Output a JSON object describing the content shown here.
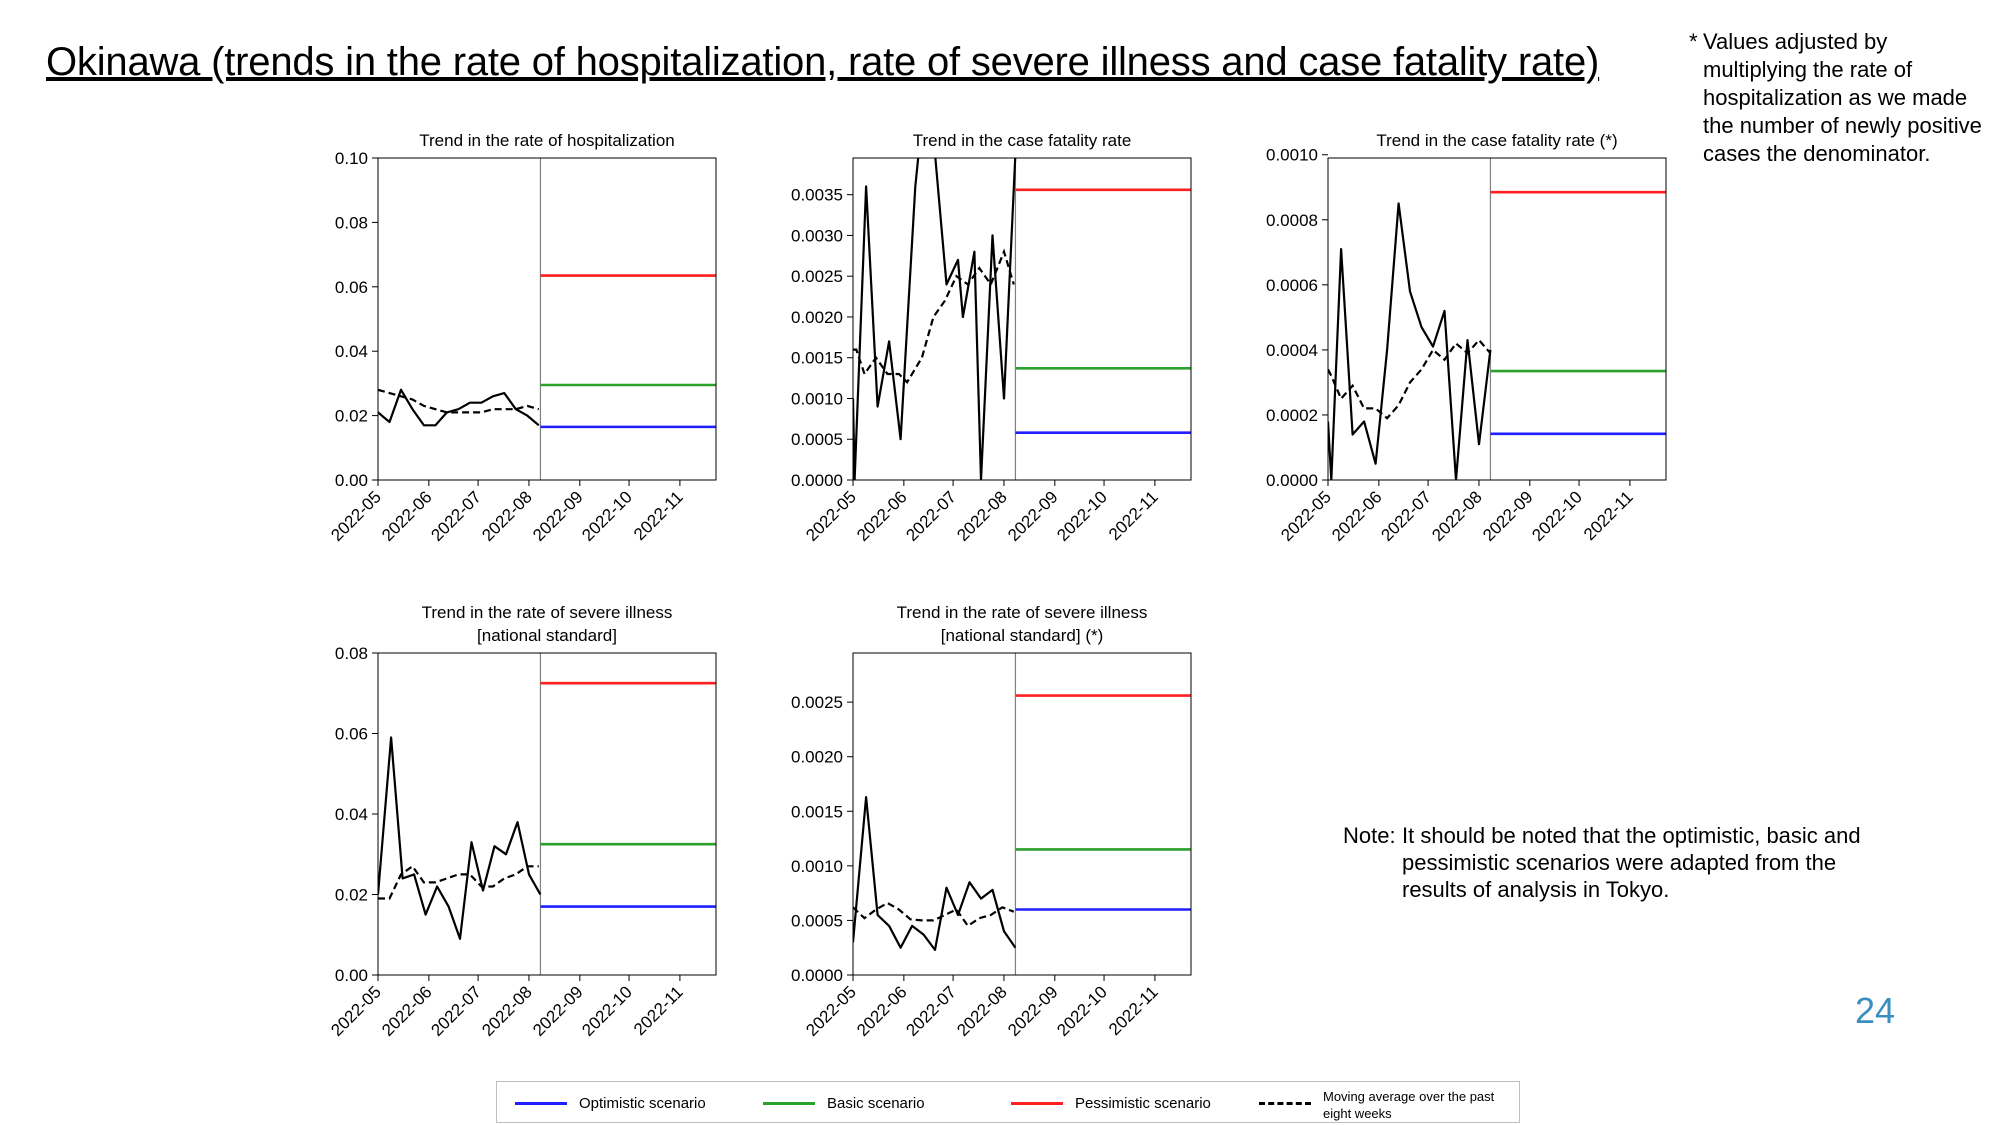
{
  "title": "Okinawa (trends in the rate of hospitalization, rate of severe illness and case fatality rate)",
  "footnote": {
    "mark": "*",
    "text": "Values adjusted by multiplying the rate of hospitalization as we made the number of newly positive cases the denominator."
  },
  "note": {
    "label": "Note:",
    "text": "It should be noted that the optimistic, basic and pessimistic scenarios were adapted from the results of analysis in Tokyo."
  },
  "page_number": "24",
  "colors": {
    "optimistic": "#1f1fff",
    "basic": "#2ca02c",
    "pessimistic": "#ff2020",
    "observed": "#000000",
    "divider": "#808080"
  },
  "legend": [
    {
      "key": "optimistic",
      "label": "Optimistic scenario",
      "style": "solid"
    },
    {
      "key": "basic",
      "label": "Basic scenario",
      "style": "solid"
    },
    {
      "key": "pessimistic",
      "label": "Pessimistic scenario",
      "style": "solid"
    },
    {
      "key": "observed",
      "label": "Moving average over the past eight weeks",
      "style": "dashed"
    }
  ],
  "chart_data": [
    {
      "type": "line",
      "title": [
        "Trend in the rate of hospitalization"
      ],
      "xlabel": "",
      "ylabel": "",
      "x_ticks": [
        "2022-05",
        "2022-06",
        "2022-07",
        "2022-08",
        "2022-09",
        "2022-10",
        "2022-11"
      ],
      "xlim": [
        "2022-05-01",
        "2022-11-23"
      ],
      "ylim": [
        0,
        0.1
      ],
      "y_ticks": [
        "0.00",
        "0.02",
        "0.04",
        "0.06",
        "0.08",
        "0.10"
      ],
      "forecast_start": "2022-08-08",
      "weekly_dates": [
        "2022-05-01",
        "2022-05-08",
        "2022-05-15",
        "2022-05-22",
        "2022-05-29",
        "2022-06-05",
        "2022-06-12",
        "2022-06-19",
        "2022-06-26",
        "2022-07-03",
        "2022-07-10",
        "2022-07-17",
        "2022-07-24",
        "2022-07-31",
        "2022-08-07"
      ],
      "weekly_rate": [
        0.021,
        0.018,
        0.028,
        0.022,
        0.017,
        0.017,
        0.021,
        0.022,
        0.024,
        0.024,
        0.026,
        0.027,
        0.022,
        0.02,
        0.017
      ],
      "moving_average": [
        0.028,
        0.027,
        0.026,
        0.025,
        0.023,
        0.022,
        0.021,
        0.021,
        0.021,
        0.021,
        0.022,
        0.022,
        0.022,
        0.023,
        0.022
      ],
      "scenarios": {
        "optimistic": 0.0165,
        "basic": 0.0295,
        "pessimistic": 0.0635
      }
    },
    {
      "type": "line",
      "title": [
        "Trend in the case fatality rate"
      ],
      "xlabel": "",
      "ylabel": "",
      "x_ticks": [
        "2022-05",
        "2022-06",
        "2022-07",
        "2022-08",
        "2022-09",
        "2022-10",
        "2022-11"
      ],
      "xlim": [
        "2022-05-01",
        "2022-11-23"
      ],
      "ylim": [
        0,
        0.00395
      ],
      "y_ticks": [
        "0.0000",
        "0.0005",
        "0.0010",
        "0.0015",
        "0.0020",
        "0.0025",
        "0.0030",
        "0.0035"
      ],
      "forecast_start": "2022-08-08",
      "weekly_dates": [
        "2022-05-01",
        "2022-05-08",
        "2022-05-15",
        "2022-05-22",
        "2022-05-29",
        "2022-06-05",
        "2022-06-12",
        "2022-06-19",
        "2022-06-26",
        "2022-07-03",
        "2022-07-10",
        "2022-07-17",
        "2022-07-24",
        "2022-07-31",
        "2022-08-07"
      ],
      "weekly_rate": [
        0.001,
        0.0,
        0.0036,
        0.0009,
        0.0017,
        0.0005,
        0.0036,
        0.004,
        0.004,
        0.0024,
        0.0027,
        0.002,
        0.0028,
        0.0,
        0.003,
        0.001,
        0.004
      ],
      "weekly_rate_dates": [
        "2022-05-01",
        "2022-05-02",
        "2022-05-09",
        "2022-05-16",
        "2022-05-23",
        "2022-05-30",
        "2022-06-08",
        "2022-06-10",
        "2022-06-20",
        "2022-06-27",
        "2022-07-04",
        "2022-07-07",
        "2022-07-14",
        "2022-07-18",
        "2022-07-25",
        "2022-08-01",
        "2022-08-08"
      ],
      "moving_average": [
        0.0016,
        0.0016,
        0.0013,
        0.0015,
        0.0013,
        0.0013,
        0.0012,
        0.0015,
        0.002,
        0.0022,
        0.0025,
        0.0024,
        0.0026,
        0.0024,
        0.0028,
        0.0024
      ],
      "moving_average_dates": [
        "2022-05-01",
        "2022-05-03",
        "2022-05-08",
        "2022-05-15",
        "2022-05-22",
        "2022-05-29",
        "2022-06-03",
        "2022-06-12",
        "2022-06-19",
        "2022-06-26",
        "2022-07-03",
        "2022-07-10",
        "2022-07-17",
        "2022-07-24",
        "2022-08-01",
        "2022-08-07"
      ],
      "scenarios": {
        "optimistic": 0.00058,
        "basic": 0.00137,
        "pessimistic": 0.00356
      }
    },
    {
      "type": "line",
      "title": [
        "Trend in the case fatality rate (*)"
      ],
      "xlabel": "",
      "ylabel": "",
      "x_ticks": [
        "2022-05",
        "2022-06",
        "2022-07",
        "2022-08",
        "2022-09",
        "2022-10",
        "2022-11"
      ],
      "xlim": [
        "2022-05-01",
        "2022-11-23"
      ],
      "ylim": [
        0,
        0.00099
      ],
      "y_ticks": [
        "0.0000",
        "0.0002",
        "0.0004",
        "0.0006",
        "0.0008",
        "0.0010"
      ],
      "forecast_start": "2022-08-08",
      "weekly_dates": [
        "2022-05-01",
        "2022-05-03",
        "2022-05-09",
        "2022-05-16",
        "2022-05-23",
        "2022-05-30",
        "2022-06-06",
        "2022-06-13",
        "2022-06-20",
        "2022-06-27",
        "2022-07-04",
        "2022-07-11",
        "2022-07-18",
        "2022-07-25",
        "2022-08-01",
        "2022-08-08"
      ],
      "weekly_rate": [
        0.00018,
        0.0,
        0.00071,
        0.00014,
        0.00018,
        5e-05,
        0.0004,
        0.00085,
        0.00058,
        0.00047,
        0.00041,
        0.00052,
        0.0,
        0.00043,
        0.00011,
        0.0004
      ],
      "moving_average": [
        0.00034,
        0.00032,
        0.00025,
        0.00029,
        0.00022,
        0.00022,
        0.00019,
        0.00023,
        0.0003,
        0.00034,
        0.0004,
        0.00037,
        0.00042,
        0.00039,
        0.00043,
        0.00039
      ],
      "scenarios": {
        "optimistic": 0.000142,
        "basic": 0.000335,
        "pessimistic": 0.000885
      }
    },
    {
      "type": "line",
      "title": [
        "Trend in the rate of severe illness",
        "[national standard]"
      ],
      "xlabel": "",
      "ylabel": "",
      "x_ticks": [
        "2022-05",
        "2022-06",
        "2022-07",
        "2022-08",
        "2022-09",
        "2022-10",
        "2022-11"
      ],
      "xlim": [
        "2022-05-01",
        "2022-11-23"
      ],
      "ylim": [
        0,
        0.08
      ],
      "y_ticks": [
        "0.00",
        "0.02",
        "0.04",
        "0.06",
        "0.08"
      ],
      "forecast_start": "2022-08-08",
      "weekly_dates": [
        "2022-05-01",
        "2022-05-09",
        "2022-05-16",
        "2022-05-23",
        "2022-05-30",
        "2022-06-06",
        "2022-06-13",
        "2022-06-20",
        "2022-06-27",
        "2022-07-04",
        "2022-07-11",
        "2022-07-18",
        "2022-07-25",
        "2022-08-01",
        "2022-08-08"
      ],
      "weekly_rate": [
        0.02,
        0.059,
        0.024,
        0.025,
        0.015,
        0.022,
        0.017,
        0.009,
        0.033,
        0.021,
        0.032,
        0.03,
        0.038,
        0.025,
        0.02
      ],
      "moving_average": [
        0.019,
        0.019,
        0.025,
        0.027,
        0.023,
        0.023,
        0.024,
        0.025,
        0.025,
        0.022,
        0.022,
        0.024,
        0.025,
        0.027,
        0.027
      ],
      "moving_average_dates": [
        "2022-05-01",
        "2022-05-08",
        "2022-05-15",
        "2022-05-22",
        "2022-05-29",
        "2022-06-05",
        "2022-06-12",
        "2022-06-19",
        "2022-06-26",
        "2022-07-03",
        "2022-07-10",
        "2022-07-17",
        "2022-07-24",
        "2022-07-31",
        "2022-08-07"
      ],
      "scenarios": {
        "optimistic": 0.017,
        "basic": 0.0325,
        "pessimistic": 0.0725
      }
    },
    {
      "type": "line",
      "title": [
        "Trend in the rate of severe illness",
        "[national standard] (*)"
      ],
      "xlabel": "",
      "ylabel": "",
      "x_ticks": [
        "2022-05",
        "2022-06",
        "2022-07",
        "2022-08",
        "2022-09",
        "2022-10",
        "2022-11"
      ],
      "xlim": [
        "2022-05-01",
        "2022-11-23"
      ],
      "ylim": [
        0,
        0.00295
      ],
      "y_ticks": [
        "0.0000",
        "0.0005",
        "0.0010",
        "0.0015",
        "0.0020",
        "0.0025"
      ],
      "forecast_start": "2022-08-08",
      "weekly_dates": [
        "2022-05-01",
        "2022-05-09",
        "2022-05-16",
        "2022-05-23",
        "2022-05-30",
        "2022-06-06",
        "2022-06-13",
        "2022-06-20",
        "2022-06-27",
        "2022-07-04",
        "2022-07-11",
        "2022-07-18",
        "2022-07-25",
        "2022-08-01",
        "2022-08-08"
      ],
      "weekly_rate": [
        0.0003,
        0.00163,
        0.00055,
        0.00045,
        0.00025,
        0.00045,
        0.00037,
        0.00023,
        0.0008,
        0.00055,
        0.00085,
        0.0007,
        0.00078,
        0.0004,
        0.00025
      ],
      "moving_average": [
        0.00062,
        0.00052,
        0.0006,
        0.00066,
        0.0006,
        0.00051,
        0.0005,
        0.0005,
        0.00055,
        0.0006,
        0.00045,
        0.00052,
        0.00055,
        0.00062,
        0.00058
      ],
      "moving_average_dates": [
        "2022-05-01",
        "2022-05-08",
        "2022-05-15",
        "2022-05-22",
        "2022-05-29",
        "2022-06-05",
        "2022-06-12",
        "2022-06-19",
        "2022-06-26",
        "2022-07-03",
        "2022-07-10",
        "2022-07-17",
        "2022-07-24",
        "2022-07-31",
        "2022-08-07"
      ],
      "scenarios": {
        "optimistic": 0.0006,
        "basic": 0.00115,
        "pessimistic": 0.00256
      }
    }
  ]
}
